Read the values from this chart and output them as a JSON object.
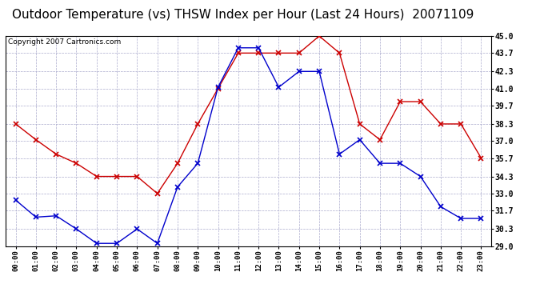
{
  "title": "Outdoor Temperature (vs) THSW Index per Hour (Last 24 Hours)  20071109",
  "copyright": "Copyright 2007 Cartronics.com",
  "hours": [
    "00:00",
    "01:00",
    "02:00",
    "03:00",
    "04:00",
    "05:00",
    "06:00",
    "07:00",
    "08:00",
    "09:00",
    "10:00",
    "11:00",
    "12:00",
    "13:00",
    "14:00",
    "15:00",
    "16:00",
    "17:00",
    "18:00",
    "19:00",
    "20:00",
    "21:00",
    "22:00",
    "23:00"
  ],
  "temp_blue": [
    32.5,
    31.2,
    31.3,
    30.3,
    29.2,
    29.2,
    30.3,
    29.2,
    33.5,
    35.3,
    41.1,
    44.1,
    44.1,
    41.1,
    42.3,
    42.3,
    36.0,
    37.1,
    35.3,
    35.3,
    34.3,
    32.0,
    31.1,
    31.1
  ],
  "thsw_red": [
    38.3,
    37.1,
    36.0,
    35.3,
    34.3,
    34.3,
    34.3,
    33.0,
    35.3,
    38.3,
    41.0,
    43.7,
    43.7,
    43.7,
    43.7,
    45.0,
    43.7,
    38.3,
    37.1,
    40.0,
    40.0,
    38.3,
    38.3,
    35.7
  ],
  "ylim_min": 29.0,
  "ylim_max": 45.0,
  "yticks": [
    29.0,
    30.3,
    31.7,
    33.0,
    34.3,
    35.7,
    37.0,
    38.3,
    39.7,
    41.0,
    42.3,
    43.7,
    45.0
  ],
  "blue_color": "#0000cc",
  "red_color": "#cc0000",
  "bg_color": "#ffffff",
  "grid_color": "#aaaacc",
  "title_fontsize": 11,
  "copyright_fontsize": 6.5
}
